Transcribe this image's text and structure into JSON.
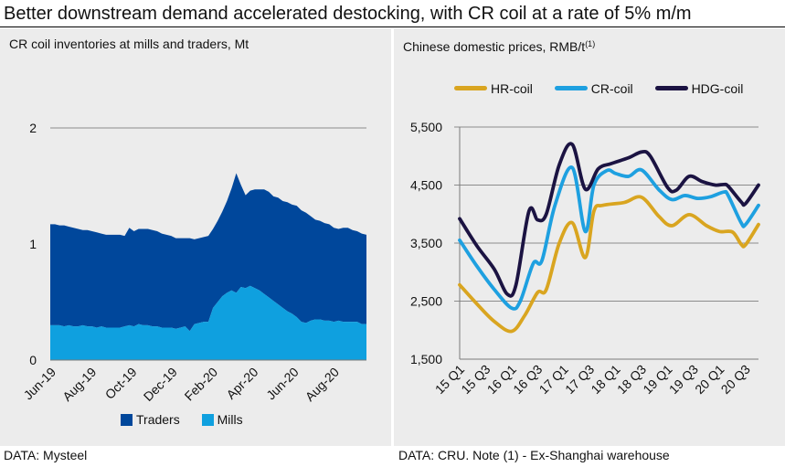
{
  "headline": "Better downstream demand accelerated destocking, with CR coil at a rate of 5% m/m",
  "sources": {
    "left": "DATA: Mysteel",
    "right": "DATA: CRU. Note (1) - Ex-Shanghai warehouse"
  },
  "colors": {
    "traders": "#00479b",
    "mills": "#0fa0df",
    "hr_coil": "#d9a520",
    "cr_coil": "#1ea0e0",
    "hdg_coil": "#1b1342",
    "panel_bg": "#ececec",
    "gridline": "#8c8c8c"
  },
  "chart_data": [
    {
      "type": "area",
      "stacked": true,
      "title": "CR coil inventories at mills and traders, Mt",
      "tick_labels": [
        "Jun-19",
        "Aug-19",
        "Oct-19",
        "Dec-19",
        "Feb-20",
        "Apr-20",
        "Jun-20",
        "Aug-20"
      ],
      "tick_weeks": [
        0,
        8.7,
        17.4,
        26.1,
        34.8,
        43.5,
        52.2,
        60.9
      ],
      "y_ticks": [
        "0",
        "1",
        "2"
      ],
      "ylim": [
        0,
        2
      ],
      "grid": "horizontal",
      "legend_position": "bottom",
      "series": [
        {
          "name": "Mills",
          "values": [
            0.3,
            0.3,
            0.3,
            0.29,
            0.3,
            0.29,
            0.29,
            0.3,
            0.29,
            0.29,
            0.28,
            0.29,
            0.28,
            0.28,
            0.28,
            0.28,
            0.29,
            0.3,
            0.29,
            0.31,
            0.3,
            0.3,
            0.29,
            0.29,
            0.28,
            0.28,
            0.28,
            0.27,
            0.28,
            0.29,
            0.25,
            0.31,
            0.32,
            0.33,
            0.33,
            0.45,
            0.5,
            0.55,
            0.58,
            0.6,
            0.58,
            0.63,
            0.62,
            0.64,
            0.62,
            0.6,
            0.57,
            0.54,
            0.51,
            0.48,
            0.45,
            0.42,
            0.4,
            0.37,
            0.33,
            0.32,
            0.34,
            0.35,
            0.35,
            0.34,
            0.34,
            0.33,
            0.34,
            0.33,
            0.33,
            0.33,
            0.33,
            0.31,
            0.31
          ]
        },
        {
          "name": "Traders",
          "values": [
            0.87,
            0.87,
            0.86,
            0.87,
            0.85,
            0.85,
            0.84,
            0.82,
            0.83,
            0.82,
            0.82,
            0.8,
            0.8,
            0.8,
            0.8,
            0.8,
            0.78,
            0.84,
            0.82,
            0.82,
            0.83,
            0.83,
            0.83,
            0.82,
            0.81,
            0.8,
            0.79,
            0.78,
            0.77,
            0.76,
            0.8,
            0.73,
            0.73,
            0.73,
            0.74,
            0.68,
            0.7,
            0.73,
            0.79,
            0.88,
            1.03,
            0.88,
            0.8,
            0.82,
            0.85,
            0.87,
            0.9,
            0.91,
            0.9,
            0.92,
            0.92,
            0.94,
            0.94,
            0.96,
            0.96,
            0.95,
            0.9,
            0.86,
            0.85,
            0.84,
            0.83,
            0.81,
            0.79,
            0.81,
            0.81,
            0.79,
            0.78,
            0.78,
            0.77
          ]
        }
      ]
    },
    {
      "type": "line",
      "title": "Chinese domestic prices, RMB/t",
      "title_superscript": "(1)",
      "x_labels": [
        "15 Q1",
        "15 Q3",
        "16 Q1",
        "16 Q3",
        "17 Q1",
        "17 Q3",
        "18 Q1",
        "18 Q3",
        "19 Q1",
        "19 Q3",
        "20 Q1",
        "20 Q3"
      ],
      "x_label_months": [
        0,
        6,
        12,
        18,
        24,
        30,
        36,
        42,
        48,
        54,
        60,
        66
      ],
      "y_ticks": [
        "1,500",
        "2,500",
        "3,500",
        "4,500",
        "5,500"
      ],
      "ylim": [
        1500,
        5500
      ],
      "grid": "horizontal",
      "legend_position": "top",
      "series": [
        {
          "name": "HR-coil",
          "points": [
            [
              0,
              2780
            ],
            [
              4,
              2450
            ],
            [
              8,
              2150
            ],
            [
              12,
              1980
            ],
            [
              15,
              2250
            ],
            [
              18,
              2650
            ],
            [
              20,
              2700
            ],
            [
              23,
              3500
            ],
            [
              26,
              3850
            ],
            [
              29,
              3250
            ],
            [
              31,
              4050
            ],
            [
              33,
              4150
            ],
            [
              38,
              4200
            ],
            [
              42,
              4290
            ],
            [
              46,
              3960
            ],
            [
              49,
              3800
            ],
            [
              53,
              3990
            ],
            [
              57,
              3800
            ],
            [
              60,
              3700
            ],
            [
              63,
              3690
            ],
            [
              65,
              3480
            ],
            [
              66,
              3470
            ],
            [
              69,
              3820
            ]
          ]
        },
        {
          "name": "CR-coil",
          "points": [
            [
              0,
              3550
            ],
            [
              4,
              3100
            ],
            [
              8,
              2700
            ],
            [
              12,
              2380
            ],
            [
              14,
              2500
            ],
            [
              17,
              3150
            ],
            [
              19,
              3200
            ],
            [
              22,
              4150
            ],
            [
              26,
              4800
            ],
            [
              29,
              3700
            ],
            [
              31,
              4500
            ],
            [
              34,
              4750
            ],
            [
              36,
              4700
            ],
            [
              39,
              4650
            ],
            [
              42,
              4760
            ],
            [
              46,
              4420
            ],
            [
              49,
              4250
            ],
            [
              52,
              4320
            ],
            [
              55,
              4270
            ],
            [
              58,
              4300
            ],
            [
              61,
              4380
            ],
            [
              62,
              4320
            ],
            [
              65,
              3850
            ],
            [
              66,
              3820
            ],
            [
              69,
              4150
            ]
          ]
        },
        {
          "name": "HDG-coil",
          "points": [
            [
              0,
              3920
            ],
            [
              4,
              3450
            ],
            [
              8,
              3050
            ],
            [
              11,
              2620
            ],
            [
              13,
              2780
            ],
            [
              16,
              4050
            ],
            [
              18,
              3900
            ],
            [
              20,
              4000
            ],
            [
              23,
              4850
            ],
            [
              26,
              5200
            ],
            [
              29,
              4430
            ],
            [
              32,
              4780
            ],
            [
              35,
              4870
            ],
            [
              39,
              4970
            ],
            [
              42,
              5070
            ],
            [
              44,
              5000
            ],
            [
              48,
              4460
            ],
            [
              50,
              4410
            ],
            [
              53,
              4650
            ],
            [
              56,
              4560
            ],
            [
              59,
              4500
            ],
            [
              61,
              4510
            ],
            [
              62,
              4480
            ],
            [
              65,
              4210
            ],
            [
              66,
              4180
            ],
            [
              69,
              4500
            ]
          ]
        }
      ]
    }
  ]
}
